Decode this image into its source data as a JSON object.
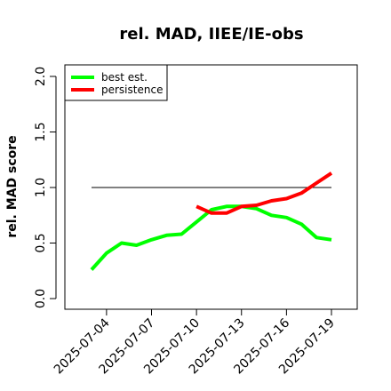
{
  "chart_data": {
    "type": "line",
    "title": "rel. MAD, IIEE/IE-obs",
    "xlabel": "",
    "ylabel": "rel. MAD score",
    "ylim": [
      0,
      2
    ],
    "yticks": [
      "0.0",
      "0.5",
      "1.0",
      "1.5",
      "2.0"
    ],
    "yticks_values": [
      0,
      0.5,
      1.0,
      1.5,
      2.0
    ],
    "x_dates": [
      "2025-07-03",
      "2025-07-04",
      "2025-07-05",
      "2025-07-06",
      "2025-07-07",
      "2025-07-08",
      "2025-07-09",
      "2025-07-10",
      "2025-07-11",
      "2025-07-12",
      "2025-07-13",
      "2025-07-14",
      "2025-07-15",
      "2025-07-16",
      "2025-07-17",
      "2025-07-18",
      "2025-07-19"
    ],
    "xticks": [
      "2025-07-04",
      "2025-07-07",
      "2025-07-10",
      "2025-07-13",
      "2025-07-16",
      "2025-07-19"
    ],
    "reference_line": {
      "y": 1.0,
      "from": "2025-07-03",
      "to": "2025-07-19",
      "color": "#000000"
    },
    "legend": {
      "placement": "top-left"
    },
    "grid": false,
    "series": [
      {
        "name": "best est.",
        "color": "#00ff00",
        "x": [
          "2025-07-03",
          "2025-07-04",
          "2025-07-05",
          "2025-07-06",
          "2025-07-07",
          "2025-07-08",
          "2025-07-09",
          "2025-07-10",
          "2025-07-11",
          "2025-07-12",
          "2025-07-13",
          "2025-07-14",
          "2025-07-15",
          "2025-07-16",
          "2025-07-17",
          "2025-07-18",
          "2025-07-19"
        ],
        "values": [
          0.26,
          0.41,
          0.5,
          0.48,
          0.53,
          0.57,
          0.58,
          0.69,
          0.8,
          0.83,
          0.83,
          0.81,
          0.75,
          0.73,
          0.67,
          0.55,
          0.53
        ]
      },
      {
        "name": "persistence",
        "color": "#ff0000",
        "x": [
          "2025-07-10",
          "2025-07-11",
          "2025-07-12",
          "2025-07-13",
          "2025-07-14",
          "2025-07-15",
          "2025-07-16",
          "2025-07-17",
          "2025-07-18",
          "2025-07-19"
        ],
        "values": [
          0.83,
          0.77,
          0.77,
          0.83,
          0.84,
          0.88,
          0.9,
          0.95,
          1.04,
          1.13
        ]
      }
    ]
  }
}
